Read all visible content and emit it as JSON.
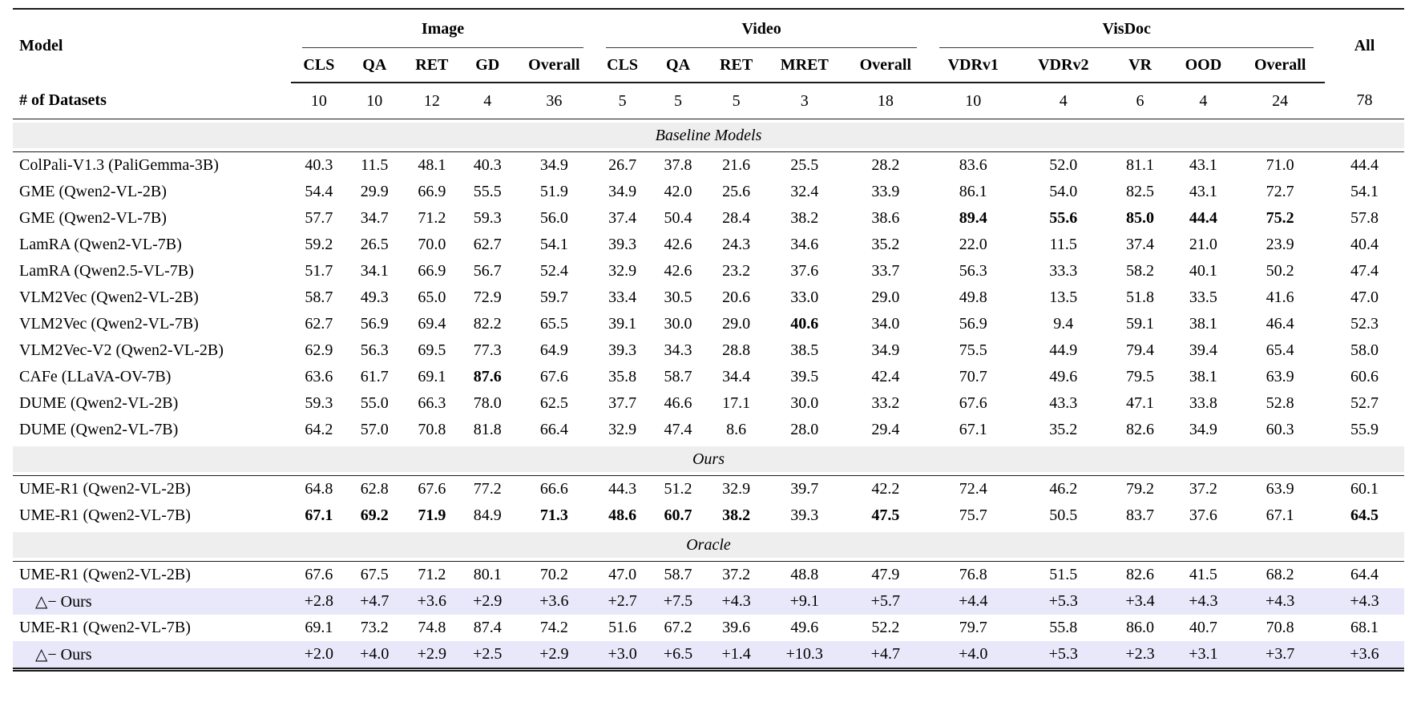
{
  "table": {
    "model_header": "Model",
    "all_header": "All",
    "col_groups": [
      {
        "label": "Image",
        "subcols": [
          "CLS",
          "QA",
          "RET",
          "GD",
          "Overall"
        ]
      },
      {
        "label": "Video",
        "subcols": [
          "CLS",
          "QA",
          "RET",
          "MRET",
          "Overall"
        ]
      },
      {
        "label": "VisDoc",
        "subcols": [
          "VDRv1",
          "VDRv2",
          "VR",
          "OOD",
          "Overall"
        ]
      }
    ],
    "datasets_row": {
      "label": "# of Datasets",
      "values": [
        "10",
        "10",
        "12",
        "4",
        "36",
        "5",
        "5",
        "5",
        "3",
        "18",
        "10",
        "4",
        "6",
        "4",
        "24",
        "78"
      ]
    },
    "colors": {
      "section_band": "#eeeeee",
      "delta_row_bg": "#e8e8fa",
      "rule": "#1a1a1a"
    },
    "sections": [
      {
        "title": "Baseline Models",
        "rows": [
          {
            "model": "ColPali-V1.3 (PaliGemma-3B)",
            "values": [
              "40.3",
              "11.5",
              "48.1",
              "40.3",
              "34.9",
              "26.7",
              "37.8",
              "21.6",
              "25.5",
              "28.2",
              "83.6",
              "52.0",
              "81.1",
              "43.1",
              "71.0",
              "44.4"
            ],
            "bold": []
          },
          {
            "model": "GME (Qwen2-VL-2B)",
            "values": [
              "54.4",
              "29.9",
              "66.9",
              "55.5",
              "51.9",
              "34.9",
              "42.0",
              "25.6",
              "32.4",
              "33.9",
              "86.1",
              "54.0",
              "82.5",
              "43.1",
              "72.7",
              "54.1"
            ],
            "bold": []
          },
          {
            "model": "GME (Qwen2-VL-7B)",
            "values": [
              "57.7",
              "34.7",
              "71.2",
              "59.3",
              "56.0",
              "37.4",
              "50.4",
              "28.4",
              "38.2",
              "38.6",
              "89.4",
              "55.6",
              "85.0",
              "44.4",
              "75.2",
              "57.8"
            ],
            "bold": [
              10,
              11,
              12,
              13,
              14
            ]
          },
          {
            "model": "LamRA (Qwen2-VL-7B)",
            "values": [
              "59.2",
              "26.5",
              "70.0",
              "62.7",
              "54.1",
              "39.3",
              "42.6",
              "24.3",
              "34.6",
              "35.2",
              "22.0",
              "11.5",
              "37.4",
              "21.0",
              "23.9",
              "40.4"
            ],
            "bold": []
          },
          {
            "model": "LamRA (Qwen2.5-VL-7B)",
            "values": [
              "51.7",
              "34.1",
              "66.9",
              "56.7",
              "52.4",
              "32.9",
              "42.6",
              "23.2",
              "37.6",
              "33.7",
              "56.3",
              "33.3",
              "58.2",
              "40.1",
              "50.2",
              "47.4"
            ],
            "bold": []
          },
          {
            "model": "VLM2Vec (Qwen2-VL-2B)",
            "values": [
              "58.7",
              "49.3",
              "65.0",
              "72.9",
              "59.7",
              "33.4",
              "30.5",
              "20.6",
              "33.0",
              "29.0",
              "49.8",
              "13.5",
              "51.8",
              "33.5",
              "41.6",
              "47.0"
            ],
            "bold": []
          },
          {
            "model": "VLM2Vec (Qwen2-VL-7B)",
            "values": [
              "62.7",
              "56.9",
              "69.4",
              "82.2",
              "65.5",
              "39.1",
              "30.0",
              "29.0",
              "40.6",
              "34.0",
              "56.9",
              "9.4",
              "59.1",
              "38.1",
              "46.4",
              "52.3"
            ],
            "bold": [
              8
            ]
          },
          {
            "model": "VLM2Vec-V2 (Qwen2-VL-2B)",
            "values": [
              "62.9",
              "56.3",
              "69.5",
              "77.3",
              "64.9",
              "39.3",
              "34.3",
              "28.8",
              "38.5",
              "34.9",
              "75.5",
              "44.9",
              "79.4",
              "39.4",
              "65.4",
              "58.0"
            ],
            "bold": []
          },
          {
            "model": "CAFe (LLaVA-OV-7B)",
            "values": [
              "63.6",
              "61.7",
              "69.1",
              "87.6",
              "67.6",
              "35.8",
              "58.7",
              "34.4",
              "39.5",
              "42.4",
              "70.7",
              "49.6",
              "79.5",
              "38.1",
              "63.9",
              "60.6"
            ],
            "bold": [
              3
            ]
          },
          {
            "model": "DUME (Qwen2-VL-2B)",
            "values": [
              "59.3",
              "55.0",
              "66.3",
              "78.0",
              "62.5",
              "37.7",
              "46.6",
              "17.1",
              "30.0",
              "33.2",
              "67.6",
              "43.3",
              "47.1",
              "33.8",
              "52.8",
              "52.7"
            ],
            "bold": []
          },
          {
            "model": "DUME (Qwen2-VL-7B)",
            "values": [
              "64.2",
              "57.0",
              "70.8",
              "81.8",
              "66.4",
              "32.9",
              "47.4",
              "8.6",
              "28.0",
              "29.4",
              "67.1",
              "35.2",
              "82.6",
              "34.9",
              "60.3",
              "55.9"
            ],
            "bold": []
          }
        ]
      },
      {
        "title": "Ours",
        "rows": [
          {
            "model": "UME-R1 (Qwen2-VL-2B)",
            "values": [
              "64.8",
              "62.8",
              "67.6",
              "77.2",
              "66.6",
              "44.3",
              "51.2",
              "32.9",
              "39.7",
              "42.2",
              "72.4",
              "46.2",
              "79.2",
              "37.2",
              "63.9",
              "60.1"
            ],
            "bold": []
          },
          {
            "model": "UME-R1 (Qwen2-VL-7B)",
            "values": [
              "67.1",
              "69.2",
              "71.9",
              "84.9",
              "71.3",
              "48.6",
              "60.7",
              "38.2",
              "39.3",
              "47.5",
              "75.7",
              "50.5",
              "83.7",
              "37.6",
              "67.1",
              "64.5"
            ],
            "bold": [
              0,
              1,
              2,
              4,
              5,
              6,
              7,
              9,
              15
            ]
          }
        ]
      },
      {
        "title": "Oracle",
        "rows": [
          {
            "model": "UME-R1 (Qwen2-VL-2B)",
            "values": [
              "67.6",
              "67.5",
              "71.2",
              "80.1",
              "70.2",
              "47.0",
              "58.7",
              "37.2",
              "48.8",
              "47.9",
              "76.8",
              "51.5",
              "82.6",
              "41.5",
              "68.2",
              "64.4"
            ],
            "bold": []
          },
          {
            "model": "△− Ours",
            "delta": true,
            "values": [
              "+2.8",
              "+4.7",
              "+3.6",
              "+2.9",
              "+3.6",
              "+2.7",
              "+7.5",
              "+4.3",
              "+9.1",
              "+5.7",
              "+4.4",
              "+5.3",
              "+3.4",
              "+4.3",
              "+4.3",
              "+4.3"
            ],
            "bold": []
          },
          {
            "model": "UME-R1 (Qwen2-VL-7B)",
            "values": [
              "69.1",
              "73.2",
              "74.8",
              "87.4",
              "74.2",
              "51.6",
              "67.2",
              "39.6",
              "49.6",
              "52.2",
              "79.7",
              "55.8",
              "86.0",
              "40.7",
              "70.8",
              "68.1"
            ],
            "bold": []
          },
          {
            "model": "△− Ours",
            "delta": true,
            "values": [
              "+2.0",
              "+4.0",
              "+2.9",
              "+2.5",
              "+2.9",
              "+3.0",
              "+6.5",
              "+1.4",
              "+10.3",
              "+4.7",
              "+4.0",
              "+5.3",
              "+2.3",
              "+3.1",
              "+3.7",
              "+3.6"
            ],
            "bold": []
          }
        ]
      }
    ]
  }
}
